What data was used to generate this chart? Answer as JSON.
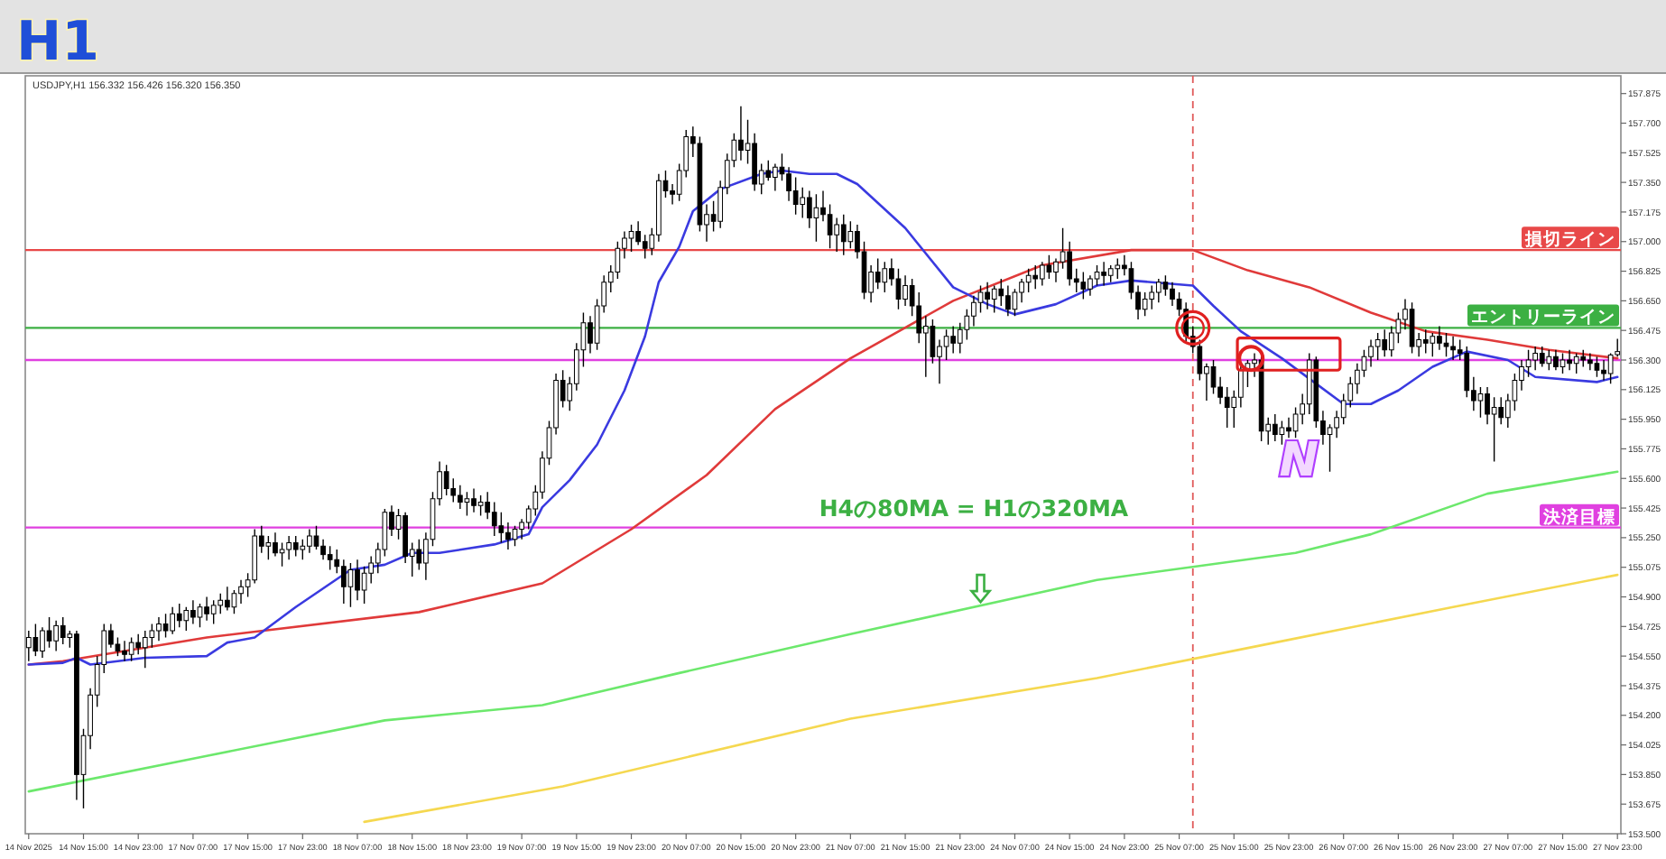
{
  "chart_data": {
    "type": "candlestick",
    "title": "H1",
    "subtitle": "USDJPY,H1  156.332 156.426 156.320 156.350",
    "categories": [
      "14 Nov 2025",
      null,
      null,
      null,
      null,
      null,
      null,
      null,
      "14 Nov 15:00",
      null,
      null,
      null,
      null,
      null,
      null,
      null,
      "14 Nov 23:00",
      null,
      null,
      null,
      null,
      null,
      null,
      null,
      "17 Nov 07:00",
      null,
      null,
      null,
      null,
      null,
      null,
      null,
      "17 Nov 15:00",
      null,
      null,
      null,
      null,
      null,
      null,
      null,
      "17 Nov 23:00",
      null,
      null,
      null,
      null,
      null,
      null,
      null,
      "18 Nov 07:00",
      null,
      null,
      null,
      null,
      null,
      null,
      null,
      "18 Nov 15:00",
      null,
      null,
      null,
      null,
      null,
      null,
      null,
      "18 Nov 23:00",
      null,
      null,
      null,
      null,
      null,
      null,
      null,
      "19 Nov 07:00",
      null,
      null,
      null,
      null,
      null,
      null,
      null,
      "19 Nov 15:00",
      null,
      null,
      null,
      null,
      null,
      null,
      null,
      "19 Nov 23:00",
      null,
      null,
      null,
      null,
      null,
      null,
      null,
      "20 Nov 07:00",
      null,
      null,
      null,
      null,
      null,
      null,
      null,
      "20 Nov 15:00",
      null,
      null,
      null,
      null,
      null,
      null,
      null,
      "20 Nov 23:00",
      null,
      null,
      null,
      null,
      null,
      null,
      null,
      "21 Nov 07:00",
      null,
      null,
      null,
      null,
      null,
      null,
      null,
      "21 Nov 15:00",
      null,
      null,
      null,
      null,
      null,
      null,
      null,
      "21 Nov 23:00",
      null,
      null,
      null,
      null,
      null,
      null,
      null,
      "24 Nov 07:00",
      null,
      null,
      null,
      null,
      null,
      null,
      null,
      "24 Nov 15:00",
      null,
      null,
      null,
      null,
      null,
      null,
      null,
      "24 Nov 23:00",
      null,
      null,
      null,
      null,
      null,
      null,
      null,
      "25 Nov 07:00",
      null,
      null,
      null,
      null,
      null,
      null,
      null,
      "25 Nov 15:00",
      null,
      null,
      null,
      null,
      null,
      null,
      null,
      "25 Nov 23:00",
      null,
      null,
      null,
      null,
      null,
      null,
      null,
      "26 Nov 07:00",
      null,
      null,
      null,
      null,
      null,
      null,
      null,
      "26 Nov 15:00",
      null,
      null,
      null,
      null,
      null,
      null,
      null,
      "26 Nov 23:00",
      null,
      null,
      null,
      null,
      null,
      null,
      null,
      "27 Nov 07:00",
      null,
      null,
      null,
      null,
      null,
      null,
      null,
      "27 Nov 15:00",
      null,
      null,
      null,
      null,
      null,
      null,
      null,
      "27 Nov 23:00"
    ],
    "ohlc": [
      [
        154.6,
        154.7,
        154.52,
        154.66
      ],
      [
        154.66,
        154.74,
        154.55,
        154.58
      ],
      [
        154.58,
        154.72,
        154.54,
        154.7
      ],
      [
        154.7,
        154.78,
        154.6,
        154.64
      ],
      [
        154.64,
        154.76,
        154.58,
        154.73
      ],
      [
        154.73,
        154.78,
        154.62,
        154.66
      ],
      [
        154.66,
        154.7,
        154.6,
        154.68
      ],
      [
        154.68,
        154.7,
        153.7,
        153.85
      ],
      [
        153.85,
        154.12,
        153.65,
        154.08
      ],
      [
        154.08,
        154.36,
        154.0,
        154.32
      ],
      [
        154.32,
        154.55,
        154.25,
        154.5
      ],
      [
        154.5,
        154.74,
        154.45,
        154.7
      ],
      [
        154.7,
        154.74,
        154.6,
        154.62
      ],
      [
        154.62,
        154.66,
        154.55,
        154.58
      ],
      [
        154.58,
        154.64,
        154.52,
        154.56
      ],
      [
        154.56,
        154.66,
        154.52,
        154.63
      ],
      [
        154.63,
        154.68,
        154.56,
        154.6
      ],
      [
        154.6,
        154.7,
        154.48,
        154.66
      ],
      [
        154.66,
        154.74,
        154.6,
        154.7
      ],
      [
        154.7,
        154.78,
        154.64,
        154.74
      ],
      [
        154.74,
        154.8,
        154.66,
        154.7
      ],
      [
        154.7,
        154.84,
        154.68,
        154.8
      ],
      [
        154.8,
        154.86,
        154.72,
        154.76
      ],
      [
        154.76,
        154.84,
        154.7,
        154.82
      ],
      [
        154.82,
        154.88,
        154.74,
        154.78
      ],
      [
        154.78,
        154.86,
        154.72,
        154.84
      ],
      [
        154.84,
        154.9,
        154.76,
        154.8
      ],
      [
        154.8,
        154.88,
        154.74,
        154.85
      ],
      [
        154.85,
        154.92,
        154.8,
        154.88
      ],
      [
        154.88,
        154.96,
        154.82,
        154.84
      ],
      [
        154.84,
        154.94,
        154.8,
        154.92
      ],
      [
        154.92,
        155.0,
        154.86,
        154.96
      ],
      [
        154.96,
        155.04,
        154.9,
        155.0
      ],
      [
        155.0,
        155.3,
        154.98,
        155.26
      ],
      [
        155.26,
        155.32,
        155.16,
        155.2
      ],
      [
        155.2,
        155.26,
        155.12,
        155.22
      ],
      [
        155.22,
        155.28,
        155.14,
        155.16
      ],
      [
        155.16,
        155.22,
        155.08,
        155.18
      ],
      [
        155.18,
        155.26,
        155.12,
        155.22
      ],
      [
        155.22,
        155.26,
        155.14,
        155.18
      ],
      [
        155.18,
        155.24,
        155.12,
        155.2
      ],
      [
        155.2,
        155.3,
        155.16,
        155.26
      ],
      [
        155.26,
        155.32,
        155.18,
        155.2
      ],
      [
        155.2,
        155.24,
        155.12,
        155.15
      ],
      [
        155.15,
        155.2,
        155.06,
        155.12
      ],
      [
        155.12,
        155.18,
        155.04,
        155.08
      ],
      [
        155.08,
        155.12,
        154.86,
        154.96
      ],
      [
        154.96,
        155.1,
        154.84,
        155.06
      ],
      [
        155.06,
        155.12,
        154.88,
        154.94
      ],
      [
        154.94,
        155.08,
        154.86,
        155.04
      ],
      [
        155.04,
        155.14,
        154.98,
        155.1
      ],
      [
        155.1,
        155.22,
        155.04,
        155.18
      ],
      [
        155.18,
        155.42,
        155.14,
        155.4
      ],
      [
        155.4,
        155.44,
        155.26,
        155.3
      ],
      [
        155.3,
        155.42,
        155.24,
        155.38
      ],
      [
        155.38,
        155.4,
        155.1,
        155.14
      ],
      [
        155.14,
        155.22,
        155.02,
        155.18
      ],
      [
        155.18,
        155.24,
        155.06,
        155.1
      ],
      [
        155.1,
        155.28,
        155.0,
        155.24
      ],
      [
        155.24,
        155.52,
        155.2,
        155.48
      ],
      [
        155.48,
        155.7,
        155.44,
        155.64
      ],
      [
        155.64,
        155.68,
        155.5,
        155.54
      ],
      [
        155.54,
        155.6,
        155.46,
        155.5
      ],
      [
        155.5,
        155.56,
        155.42,
        155.46
      ],
      [
        155.46,
        155.52,
        155.38,
        155.48
      ],
      [
        155.48,
        155.54,
        155.4,
        155.44
      ],
      [
        155.44,
        155.5,
        155.38,
        155.46
      ],
      [
        155.46,
        155.52,
        155.36,
        155.4
      ],
      [
        155.4,
        155.46,
        155.26,
        155.32
      ],
      [
        155.32,
        155.4,
        155.22,
        155.28
      ],
      [
        155.28,
        155.34,
        155.18,
        155.24
      ],
      [
        155.24,
        155.32,
        155.2,
        155.3
      ],
      [
        155.3,
        155.36,
        155.24,
        155.34
      ],
      [
        155.34,
        155.44,
        155.3,
        155.42
      ],
      [
        155.42,
        155.56,
        155.38,
        155.52
      ],
      [
        155.52,
        155.76,
        155.48,
        155.72
      ],
      [
        155.72,
        155.94,
        155.68,
        155.9
      ],
      [
        155.9,
        156.22,
        155.86,
        156.18
      ],
      [
        156.18,
        156.24,
        156.02,
        156.06
      ],
      [
        156.06,
        156.2,
        156.0,
        156.16
      ],
      [
        156.16,
        156.4,
        156.12,
        156.36
      ],
      [
        156.36,
        156.58,
        156.26,
        156.52
      ],
      [
        156.52,
        156.56,
        156.34,
        156.4
      ],
      [
        156.4,
        156.66,
        156.36,
        156.62
      ],
      [
        156.62,
        156.8,
        156.58,
        156.76
      ],
      [
        156.76,
        156.86,
        156.7,
        156.82
      ],
      [
        156.82,
        157.0,
        156.78,
        156.96
      ],
      [
        156.96,
        157.06,
        156.9,
        157.02
      ],
      [
        157.02,
        157.1,
        156.94,
        157.06
      ],
      [
        157.06,
        157.12,
        156.98,
        157.0
      ],
      [
        157.0,
        157.04,
        156.9,
        156.96
      ],
      [
        156.96,
        157.08,
        156.92,
        157.04
      ],
      [
        157.04,
        157.4,
        157.0,
        157.36
      ],
      [
        157.36,
        157.42,
        157.26,
        157.3
      ],
      [
        157.3,
        157.34,
        157.22,
        157.28
      ],
      [
        157.28,
        157.46,
        157.24,
        157.42
      ],
      [
        157.42,
        157.66,
        157.38,
        157.62
      ],
      [
        157.62,
        157.68,
        157.5,
        157.58
      ],
      [
        157.58,
        157.62,
        157.06,
        157.1
      ],
      [
        157.1,
        157.22,
        157.0,
        157.16
      ],
      [
        157.16,
        157.24,
        157.06,
        157.12
      ],
      [
        157.12,
        157.36,
        157.08,
        157.32
      ],
      [
        157.32,
        157.52,
        157.28,
        157.48
      ],
      [
        157.48,
        157.64,
        157.44,
        157.6
      ],
      [
        157.6,
        157.8,
        157.48,
        157.54
      ],
      [
        157.54,
        157.72,
        157.46,
        157.58
      ],
      [
        157.58,
        157.64,
        157.3,
        157.34
      ],
      [
        157.34,
        157.46,
        157.28,
        157.42
      ],
      [
        157.42,
        157.48,
        157.36,
        157.38
      ],
      [
        157.38,
        157.46,
        157.3,
        157.44
      ],
      [
        157.44,
        157.52,
        157.36,
        157.4
      ],
      [
        157.4,
        157.44,
        157.24,
        157.3
      ],
      [
        157.3,
        157.38,
        157.16,
        157.22
      ],
      [
        157.22,
        157.32,
        157.14,
        157.26
      ],
      [
        157.26,
        157.3,
        157.08,
        157.14
      ],
      [
        157.14,
        157.28,
        157.0,
        157.2
      ],
      [
        157.2,
        157.3,
        157.12,
        157.16
      ],
      [
        157.16,
        157.22,
        156.96,
        157.04
      ],
      [
        157.04,
        157.14,
        156.94,
        157.1
      ],
      [
        157.1,
        157.16,
        156.92,
        157.0
      ],
      [
        157.0,
        157.12,
        156.96,
        157.06
      ],
      [
        157.06,
        157.1,
        156.9,
        156.94
      ],
      [
        156.94,
        157.0,
        156.66,
        156.7
      ],
      [
        156.7,
        156.86,
        156.64,
        156.82
      ],
      [
        156.82,
        156.9,
        156.72,
        156.76
      ],
      [
        156.76,
        156.88,
        156.7,
        156.84
      ],
      [
        156.84,
        156.9,
        156.74,
        156.78
      ],
      [
        156.78,
        156.84,
        156.6,
        156.66
      ],
      [
        156.66,
        156.8,
        156.62,
        156.74
      ],
      [
        156.74,
        156.78,
        156.56,
        156.62
      ],
      [
        156.62,
        156.7,
        156.4,
        156.46
      ],
      [
        156.46,
        156.56,
        156.2,
        156.5
      ],
      [
        156.5,
        156.54,
        156.28,
        156.32
      ],
      [
        156.32,
        156.42,
        156.16,
        156.38
      ],
      [
        156.38,
        156.48,
        156.3,
        156.44
      ],
      [
        156.44,
        156.5,
        156.34,
        156.4
      ],
      [
        156.4,
        156.52,
        156.34,
        156.48
      ],
      [
        156.48,
        156.6,
        156.42,
        156.56
      ],
      [
        156.56,
        156.68,
        156.5,
        156.64
      ],
      [
        156.64,
        156.74,
        156.58,
        156.7
      ],
      [
        156.7,
        156.76,
        156.6,
        156.66
      ],
      [
        156.66,
        156.74,
        156.58,
        156.72
      ],
      [
        156.72,
        156.78,
        156.62,
        156.68
      ],
      [
        156.68,
        156.74,
        156.56,
        156.6
      ],
      [
        156.6,
        156.72,
        156.56,
        156.7
      ],
      [
        156.7,
        156.78,
        156.64,
        156.76
      ],
      [
        156.76,
        156.84,
        156.7,
        156.8
      ],
      [
        156.8,
        156.86,
        156.72,
        156.78
      ],
      [
        156.78,
        156.88,
        156.74,
        156.86
      ],
      [
        156.86,
        156.92,
        156.78,
        156.82
      ],
      [
        156.82,
        156.9,
        156.76,
        156.88
      ],
      [
        156.88,
        157.08,
        156.84,
        156.94
      ],
      [
        156.94,
        157.0,
        156.74,
        156.78
      ],
      [
        156.78,
        156.84,
        156.7,
        156.76
      ],
      [
        156.76,
        156.82,
        156.66,
        156.72
      ],
      [
        156.72,
        156.8,
        156.68,
        156.78
      ],
      [
        156.78,
        156.86,
        156.74,
        156.82
      ],
      [
        156.82,
        156.88,
        156.74,
        156.8
      ],
      [
        156.8,
        156.86,
        156.76,
        156.84
      ],
      [
        156.84,
        156.9,
        156.78,
        156.86
      ],
      [
        156.86,
        156.92,
        156.8,
        156.84
      ],
      [
        156.84,
        156.88,
        156.66,
        156.7
      ],
      [
        156.7,
        156.74,
        156.54,
        156.6
      ],
      [
        156.6,
        156.7,
        156.56,
        156.66
      ],
      [
        156.66,
        156.74,
        156.6,
        156.7
      ],
      [
        156.7,
        156.78,
        156.64,
        156.76
      ],
      [
        156.76,
        156.8,
        156.68,
        156.72
      ],
      [
        156.72,
        156.76,
        156.62,
        156.66
      ],
      [
        156.66,
        156.7,
        156.56,
        156.6
      ],
      [
        156.6,
        156.64,
        156.4,
        156.44
      ],
      [
        156.44,
        156.5,
        156.34,
        156.38
      ],
      [
        156.38,
        156.42,
        156.18,
        156.22
      ],
      [
        156.22,
        156.28,
        156.06,
        156.26
      ],
      [
        156.26,
        156.3,
        156.1,
        156.14
      ],
      [
        156.14,
        156.2,
        156.04,
        156.08
      ],
      [
        156.08,
        156.14,
        155.9,
        156.02
      ],
      [
        156.02,
        156.12,
        155.9,
        156.08
      ],
      [
        156.08,
        156.28,
        156.02,
        156.24
      ],
      [
        156.24,
        156.3,
        156.14,
        156.28
      ],
      [
        156.28,
        156.34,
        156.2,
        156.3
      ],
      [
        156.3,
        156.32,
        155.82,
        155.88
      ],
      [
        155.88,
        155.96,
        155.8,
        155.92
      ],
      [
        155.92,
        155.98,
        155.82,
        155.86
      ],
      [
        155.86,
        155.94,
        155.8,
        155.9
      ],
      [
        155.9,
        155.96,
        155.84,
        155.88
      ],
      [
        155.88,
        156.02,
        155.84,
        155.98
      ],
      [
        155.98,
        156.1,
        155.92,
        156.04
      ],
      [
        156.04,
        156.34,
        155.98,
        156.3
      ],
      [
        156.3,
        156.32,
        155.9,
        155.94
      ],
      [
        155.94,
        156.0,
        155.8,
        155.86
      ],
      [
        155.86,
        155.92,
        155.64,
        155.9
      ],
      [
        155.9,
        156.0,
        155.84,
        155.96
      ],
      [
        155.96,
        156.1,
        155.92,
        156.06
      ],
      [
        156.06,
        156.2,
        156.02,
        156.16
      ],
      [
        156.16,
        156.28,
        156.1,
        156.24
      ],
      [
        156.24,
        156.36,
        156.2,
        156.32
      ],
      [
        156.32,
        156.42,
        156.26,
        156.38
      ],
      [
        156.38,
        156.46,
        156.3,
        156.42
      ],
      [
        156.42,
        156.48,
        156.32,
        156.36
      ],
      [
        156.36,
        156.5,
        156.32,
        156.46
      ],
      [
        156.46,
        156.58,
        156.4,
        156.54
      ],
      [
        156.54,
        156.66,
        156.48,
        156.6
      ],
      [
        156.6,
        156.64,
        156.34,
        156.38
      ],
      [
        156.38,
        156.46,
        156.32,
        156.42
      ],
      [
        156.42,
        156.48,
        156.34,
        156.4
      ],
      [
        156.4,
        156.46,
        156.32,
        156.44
      ],
      [
        156.44,
        156.5,
        156.36,
        156.4
      ],
      [
        156.4,
        156.46,
        156.32,
        156.38
      ],
      [
        156.38,
        156.44,
        156.3,
        156.36
      ],
      [
        156.36,
        156.42,
        156.3,
        156.34
      ],
      [
        156.34,
        156.38,
        156.08,
        156.12
      ],
      [
        156.12,
        156.2,
        156.0,
        156.06
      ],
      [
        156.06,
        156.14,
        155.96,
        156.1
      ],
      [
        156.1,
        156.14,
        155.92,
        155.98
      ],
      [
        155.98,
        156.08,
        155.7,
        156.02
      ],
      [
        156.02,
        156.08,
        155.92,
        155.96
      ],
      [
        155.96,
        156.1,
        155.9,
        156.06
      ],
      [
        156.06,
        156.22,
        156.0,
        156.18
      ],
      [
        156.18,
        156.3,
        156.12,
        156.26
      ],
      [
        156.26,
        156.36,
        156.2,
        156.3
      ],
      [
        156.3,
        156.38,
        156.24,
        156.34
      ],
      [
        156.34,
        156.38,
        156.26,
        156.28
      ],
      [
        156.28,
        156.36,
        156.24,
        156.32
      ],
      [
        156.32,
        156.36,
        156.24,
        156.26
      ],
      [
        156.26,
        156.34,
        156.22,
        156.3
      ],
      [
        156.3,
        156.36,
        156.24,
        156.28
      ],
      [
        156.28,
        156.34,
        156.22,
        156.32
      ],
      [
        156.32,
        156.36,
        156.26,
        156.3
      ],
      [
        156.3,
        156.34,
        156.24,
        156.28
      ],
      [
        156.28,
        156.32,
        156.2,
        156.24
      ],
      [
        156.24,
        156.3,
        156.18,
        156.22
      ],
      [
        156.22,
        156.34,
        156.16,
        156.33
      ],
      [
        156.332,
        156.426,
        156.32,
        156.35
      ]
    ],
    "series": [
      {
        "type": "line",
        "color": "#e03a3a",
        "values": [
          154.5,
          null,
          null,
          null,
          null,
          154.52,
          null,
          null,
          null,
          null,
          null,
          null,
          null,
          null,
          null,
          null,
          null,
          null,
          null,
          null,
          null,
          null,
          null,
          null,
          null,
          null,
          154.66,
          null,
          null,
          null,
          null,
          null,
          null,
          null,
          null,
          null,
          null,
          null,
          null,
          null,
          null,
          null,
          null,
          null,
          null,
          null,
          null,
          null,
          null,
          null,
          null,
          null,
          null,
          null,
          null,
          null,
          null,
          154.81,
          null,
          null,
          null,
          null,
          null,
          null,
          null,
          null,
          null,
          null,
          null,
          null,
          null,
          null,
          null,
          null,
          null,
          154.98,
          null,
          null,
          null,
          null,
          null,
          null,
          null,
          null,
          null,
          null,
          null,
          null,
          155.3,
          null,
          null,
          null,
          null,
          null,
          null,
          null,
          null,
          null,
          null,
          155.62,
          null,
          null,
          null,
          null,
          null,
          null,
          null,
          null,
          null,
          156.01,
          null,
          null,
          null,
          null,
          null,
          null,
          null,
          null,
          null,
          null,
          156.31,
          null,
          null,
          null,
          null,
          null,
          null,
          null,
          null,
          null,
          null,
          null,
          null,
          null,
          null,
          156.65,
          null,
          null,
          null,
          null,
          null,
          null,
          null,
          null,
          null,
          null,
          null,
          null,
          156.86,
          null,
          null,
          null,
          null,
          null,
          null,
          null,
          null,
          null,
          null,
          null,
          null,
          156.95,
          null,
          null,
          null,
          null,
          null,
          null,
          null,
          null,
          156.95,
          null,
          null,
          null,
          null,
          null,
          null,
          null,
          156.83,
          null,
          null,
          null,
          null,
          null,
          null,
          null,
          null,
          156.73,
          null,
          null,
          null,
          null,
          null,
          null,
          null,
          null,
          156.58,
          null,
          null,
          null,
          null,
          null,
          null,
          null,
          156.47,
          null,
          null,
          null,
          null,
          null,
          null,
          null,
          null,
          156.42,
          null,
          null,
          null,
          null,
          null,
          null,
          null,
          null,
          156.36,
          null,
          null,
          null,
          null,
          null,
          null,
          null,
          null,
          null,
          156.31
        ]
      },
      {
        "type": "line",
        "color": "#3a3ae0",
        "values": [
          154.5,
          null,
          null,
          null,
          null,
          154.51,
          null,
          154.54,
          null,
          154.5,
          null,
          null,
          null,
          null,
          null,
          null,
          null,
          154.54,
          null,
          null,
          null,
          null,
          null,
          null,
          null,
          null,
          154.55,
          null,
          null,
          154.63,
          null,
          null,
          null,
          154.66,
          null,
          null,
          null,
          null,
          null,
          154.84,
          null,
          null,
          null,
          null,
          null,
          null,
          null,
          155.06,
          null,
          null,
          null,
          null,
          155.09,
          null,
          null,
          null,
          155.16,
          null,
          null,
          null,
          155.16,
          null,
          null,
          null,
          null,
          null,
          null,
          null,
          155.21,
          null,
          null,
          null,
          null,
          155.27,
          null,
          155.43,
          null,
          null,
          null,
          155.59,
          null,
          null,
          null,
          155.8,
          null,
          null,
          null,
          156.12,
          null,
          null,
          156.44,
          null,
          156.76,
          null,
          null,
          156.97,
          null,
          157.18,
          null,
          null,
          null,
          157.31,
          null,
          null,
          null,
          null,
          null,
          157.4,
          null,
          null,
          157.42,
          null,
          null,
          null,
          157.4,
          null,
          null,
          null,
          157.4,
          null,
          null,
          157.34,
          null,
          null,
          null,
          null,
          null,
          null,
          157.08,
          null,
          null,
          null,
          null,
          null,
          null,
          156.73,
          null,
          null,
          null,
          null,
          156.63,
          null,
          null,
          null,
          156.57,
          null,
          null,
          null,
          null,
          null,
          156.63,
          null,
          null,
          null,
          null,
          null,
          156.74,
          null,
          null,
          null,
          null,
          156.77,
          null,
          null,
          null,
          null,
          null,
          null,
          null,
          null,
          156.74,
          null,
          null,
          156.62,
          null,
          null,
          null,
          156.47,
          null,
          null,
          null,
          null,
          null,
          156.31,
          null,
          null,
          null,
          156.19,
          null,
          null,
          null,
          null,
          156.04,
          null,
          null,
          null,
          156.04,
          null,
          null,
          null,
          156.12,
          null,
          null,
          null,
          null,
          156.26,
          null,
          null,
          null,
          null,
          156.35,
          null,
          null,
          null,
          null,
          null,
          156.3,
          null,
          null,
          null,
          156.2,
          null,
          null,
          null,
          null,
          null,
          null,
          null,
          null,
          156.17,
          null,
          null,
          156.2
        ]
      },
      {
        "type": "line",
        "color": "#6ce86c",
        "values": [
          153.75,
          null,
          null,
          null,
          null,
          null,
          null,
          null,
          null,
          null,
          null,
          null,
          null,
          null,
          null,
          null,
          null,
          null,
          null,
          null,
          null,
          null,
          null,
          null,
          null,
          null,
          153.96,
          null,
          null,
          null,
          null,
          null,
          null,
          null,
          null,
          null,
          null,
          null,
          null,
          null,
          null,
          null,
          null,
          null,
          null,
          null,
          null,
          null,
          null,
          null,
          null,
          null,
          154.17,
          null,
          null,
          null,
          null,
          null,
          null,
          null,
          null,
          null,
          null,
          null,
          null,
          null,
          null,
          null,
          null,
          null,
          null,
          null,
          null,
          null,
          null,
          154.26,
          null,
          null,
          null,
          null,
          null,
          null,
          null,
          null,
          null,
          null,
          null,
          null,
          null,
          null,
          null,
          null,
          null,
          null,
          null,
          154.45,
          null,
          null,
          null,
          null,
          null,
          null,
          null,
          null,
          null,
          null,
          null,
          null,
          null,
          null,
          null,
          null,
          null,
          null,
          null,
          null,
          null,
          null,
          null,
          null,
          154.68,
          null,
          null,
          null,
          null,
          null,
          null,
          null,
          null,
          null,
          null,
          null,
          null,
          null,
          null,
          null,
          null,
          null,
          null,
          null,
          null,
          null,
          null,
          null,
          null,
          null,
          null,
          null,
          null,
          null,
          null,
          null,
          null,
          null,
          null,
          null,
          155.0,
          null,
          null,
          null,
          null,
          null,
          null,
          null,
          null,
          null,
          null,
          null,
          null,
          null,
          null,
          null,
          null,
          null,
          null,
          null,
          null,
          null,
          null,
          null,
          null,
          null,
          null,
          null,
          null,
          155.16,
          null,
          null,
          null,
          null,
          null,
          null,
          null,
          null,
          null,
          null,
          155.27,
          null,
          null,
          null,
          null,
          null,
          null,
          null,
          null,
          null,
          null,
          null,
          null,
          null,
          null,
          null,
          null,
          155.51,
          null,
          null,
          null,
          null,
          null,
          null,
          null,
          null,
          null,
          null,
          null,
          null,
          null,
          null,
          null,
          null,
          null,
          null,
          155.64
        ]
      },
      {
        "type": "line",
        "color": "#f5d850",
        "values": [
          null,
          null,
          null,
          null,
          null,
          null,
          null,
          null,
          null,
          null,
          null,
          null,
          null,
          null,
          null,
          null,
          null,
          null,
          null,
          null,
          null,
          null,
          null,
          null,
          null,
          null,
          null,
          null,
          null,
          null,
          null,
          null,
          null,
          null,
          null,
          null,
          null,
          null,
          null,
          null,
          null,
          null,
          null,
          null,
          null,
          null,
          null,
          null,
          null,
          153.57,
          null,
          null,
          null,
          null,
          null,
          null,
          null,
          null,
          null,
          null,
          null,
          null,
          null,
          null,
          null,
          null,
          null,
          null,
          null,
          null,
          null,
          null,
          null,
          null,
          null,
          null,
          null,
          null,
          153.78,
          null,
          null,
          null,
          null,
          null,
          null,
          null,
          null,
          null,
          null,
          null,
          null,
          null,
          null,
          null,
          null,
          null,
          null,
          null,
          null,
          null,
          null,
          null,
          null,
          null,
          null,
          null,
          null,
          null,
          null,
          null,
          null,
          null,
          null,
          null,
          null,
          null,
          null,
          null,
          null,
          null,
          154.18,
          null,
          null,
          null,
          null,
          null,
          null,
          null,
          null,
          null,
          null,
          null,
          null,
          null,
          null,
          null,
          null,
          null,
          null,
          null,
          null,
          null,
          null,
          null,
          null,
          null,
          null,
          null,
          null,
          null,
          null,
          null,
          null,
          null,
          null,
          null,
          154.42,
          null,
          null,
          null,
          null,
          null,
          null,
          null,
          null,
          null,
          null,
          null,
          null,
          null,
          null,
          null,
          null,
          null,
          null,
          null,
          null,
          null,
          null,
          null,
          null,
          null,
          154.63,
          null,
          null,
          null,
          null,
          null,
          null,
          null,
          null,
          null,
          null,
          null,
          null,
          null,
          null,
          null,
          null,
          null,
          null,
          null,
          null,
          null,
          null,
          null,
          null,
          null,
          154.84,
          null,
          null,
          null,
          null,
          null,
          null,
          null,
          null,
          null,
          null,
          null,
          null,
          null,
          null,
          null,
          null,
          null,
          null,
          null,
          null,
          null,
          null,
          null,
          155.03
        ]
      }
    ],
    "ylim": [
      153.5,
      157.98
    ],
    "yticks": [
      {
        "value": 157.875,
        "label": "157.875"
      },
      {
        "value": 157.7,
        "label": "157.700"
      },
      {
        "value": 157.525,
        "label": "157.525"
      },
      {
        "value": 157.35,
        "label": "157.350"
      },
      {
        "value": 157.175,
        "label": "157.175"
      },
      {
        "value": 157.0,
        "label": "157.000"
      },
      {
        "value": 156.825,
        "label": "156.825"
      },
      {
        "value": 156.65,
        "label": "156.650"
      },
      {
        "value": 156.475,
        "label": "156.475"
      },
      {
        "value": 156.3,
        "label": "156.300"
      },
      {
        "value": 156.125,
        "label": "156.125"
      },
      {
        "value": 155.95,
        "label": "155.950"
      },
      {
        "value": 155.775,
        "label": "155.775"
      },
      {
        "value": 155.6,
        "label": "155.600"
      },
      {
        "value": 155.425,
        "label": "155.425"
      },
      {
        "value": 155.25,
        "label": "155.250"
      },
      {
        "value": 155.075,
        "label": "155.075"
      },
      {
        "value": 154.9,
        "label": "154.900"
      },
      {
        "value": 154.725,
        "label": "154.725"
      },
      {
        "value": 154.55,
        "label": "154.550"
      },
      {
        "value": 154.375,
        "label": "154.375"
      },
      {
        "value": 154.2,
        "label": "154.200"
      },
      {
        "value": 154.025,
        "label": "154.025"
      },
      {
        "value": 153.85,
        "label": "153.850"
      },
      {
        "value": 153.675,
        "label": "153.675"
      },
      {
        "value": 153.5,
        "label": "153.500"
      }
    ],
    "ref_lines": [
      {
        "axis": "y",
        "value": 156.95,
        "label": "損切ライン",
        "color": "#e84848"
      },
      {
        "axis": "y",
        "value": 156.49,
        "label": "エントリーライン",
        "color": "#3cb043"
      },
      {
        "axis": "y",
        "value": 156.3,
        "color": "#e040e0"
      },
      {
        "axis": "y",
        "value": 155.31,
        "label": "決済目標",
        "color": "#e040e0"
      }
    ],
    "annotations": [
      "H4の80MA = H1の320MA",
      "N"
    ]
  }
}
